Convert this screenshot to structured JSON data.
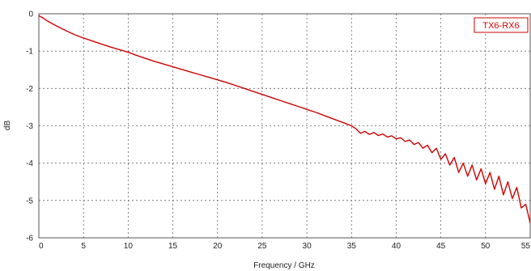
{
  "chart_data": {
    "type": "line",
    "title": "",
    "xlabel": "Frequency / GHz",
    "ylabel": "dB",
    "xlim": [
      0,
      55
    ],
    "ylim": [
      -6,
      0
    ],
    "x_ticks": [
      "0",
      "5",
      "10",
      "15",
      "20",
      "25",
      "30",
      "35",
      "40",
      "45",
      "50",
      "55"
    ],
    "y_ticks": [
      "0",
      "-1",
      "-2",
      "-3",
      "-4",
      "-5",
      "-6"
    ],
    "grid": true,
    "legend_position": "top-right",
    "series": [
      {
        "name": "TX6-RX6",
        "color": "#d00000",
        "x": [
          0,
          0.5,
          1,
          2,
          3,
          4,
          5,
          6,
          7,
          8,
          9,
          10,
          11,
          12,
          13,
          14,
          15,
          16,
          17,
          18,
          19,
          20,
          21,
          22,
          23,
          24,
          25,
          26,
          27,
          28,
          29,
          30,
          31,
          32,
          33,
          34,
          35,
          35.5,
          36,
          36.5,
          37,
          37.5,
          38,
          38.5,
          39,
          39.5,
          40,
          40.5,
          41,
          41.5,
          42,
          42.5,
          43,
          43.5,
          44,
          44.5,
          45,
          45.5,
          46,
          46.5,
          47,
          47.5,
          48,
          48.5,
          49,
          49.5,
          50,
          50.5,
          51,
          51.5,
          52,
          52.5,
          53,
          53.5,
          54,
          54.5,
          55
        ],
        "values": [
          -0.05,
          -0.12,
          -0.2,
          -0.33,
          -0.45,
          -0.56,
          -0.65,
          -0.73,
          -0.81,
          -0.89,
          -0.96,
          -1.03,
          -1.12,
          -1.2,
          -1.28,
          -1.35,
          -1.42,
          -1.49,
          -1.56,
          -1.63,
          -1.7,
          -1.77,
          -1.84,
          -1.92,
          -2.0,
          -2.08,
          -2.16,
          -2.24,
          -2.32,
          -2.4,
          -2.48,
          -2.56,
          -2.64,
          -2.73,
          -2.82,
          -2.91,
          -3.0,
          -3.08,
          -3.2,
          -3.15,
          -3.23,
          -3.18,
          -3.26,
          -3.22,
          -3.3,
          -3.27,
          -3.35,
          -3.32,
          -3.42,
          -3.38,
          -3.5,
          -3.45,
          -3.6,
          -3.52,
          -3.72,
          -3.6,
          -3.9,
          -3.75,
          -4.05,
          -3.85,
          -4.25,
          -4.0,
          -4.35,
          -4.05,
          -4.45,
          -4.15,
          -4.55,
          -4.25,
          -4.7,
          -4.35,
          -4.85,
          -4.5,
          -4.95,
          -4.65,
          -5.2,
          -5.1,
          -5.6
        ]
      }
    ]
  }
}
